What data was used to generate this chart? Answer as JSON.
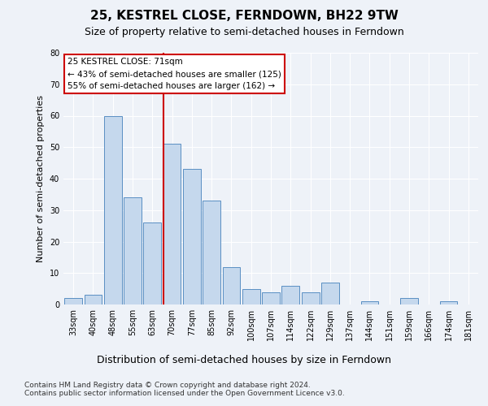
{
  "title": "25, KESTREL CLOSE, FERNDOWN, BH22 9TW",
  "subtitle": "Size of property relative to semi-detached houses in Ferndown",
  "xlabel": "Distribution of semi-detached houses by size in Ferndown",
  "ylabel": "Number of semi-detached properties",
  "categories": [
    "33sqm",
    "40sqm",
    "48sqm",
    "55sqm",
    "63sqm",
    "70sqm",
    "77sqm",
    "85sqm",
    "92sqm",
    "100sqm",
    "107sqm",
    "114sqm",
    "122sqm",
    "129sqm",
    "137sqm",
    "144sqm",
    "151sqm",
    "159sqm",
    "166sqm",
    "174sqm",
    "181sqm"
  ],
  "values": [
    2,
    3,
    60,
    34,
    26,
    51,
    43,
    33,
    12,
    5,
    4,
    6,
    4,
    7,
    0,
    1,
    0,
    2,
    0,
    1,
    0
  ],
  "bar_color": "#c5d8ed",
  "bar_edge_color": "#5a8fc3",
  "highlight_index": 5,
  "highlight_line_color": "#cc0000",
  "annotation_text": "25 KESTREL CLOSE: 71sqm\n← 43% of semi-detached houses are smaller (125)\n55% of semi-detached houses are larger (162) →",
  "annotation_box_color": "#ffffff",
  "annotation_box_edge_color": "#cc0000",
  "ylim": [
    0,
    80
  ],
  "yticks": [
    0,
    10,
    20,
    30,
    40,
    50,
    60,
    70,
    80
  ],
  "footer_text": "Contains HM Land Registry data © Crown copyright and database right 2024.\nContains public sector information licensed under the Open Government Licence v3.0.",
  "background_color": "#eef2f8",
  "grid_color": "#ffffff",
  "title_fontsize": 11,
  "subtitle_fontsize": 9,
  "tick_fontsize": 7,
  "ylabel_fontsize": 8,
  "xlabel_fontsize": 9,
  "footer_fontsize": 6.5,
  "annotation_fontsize": 7.5
}
